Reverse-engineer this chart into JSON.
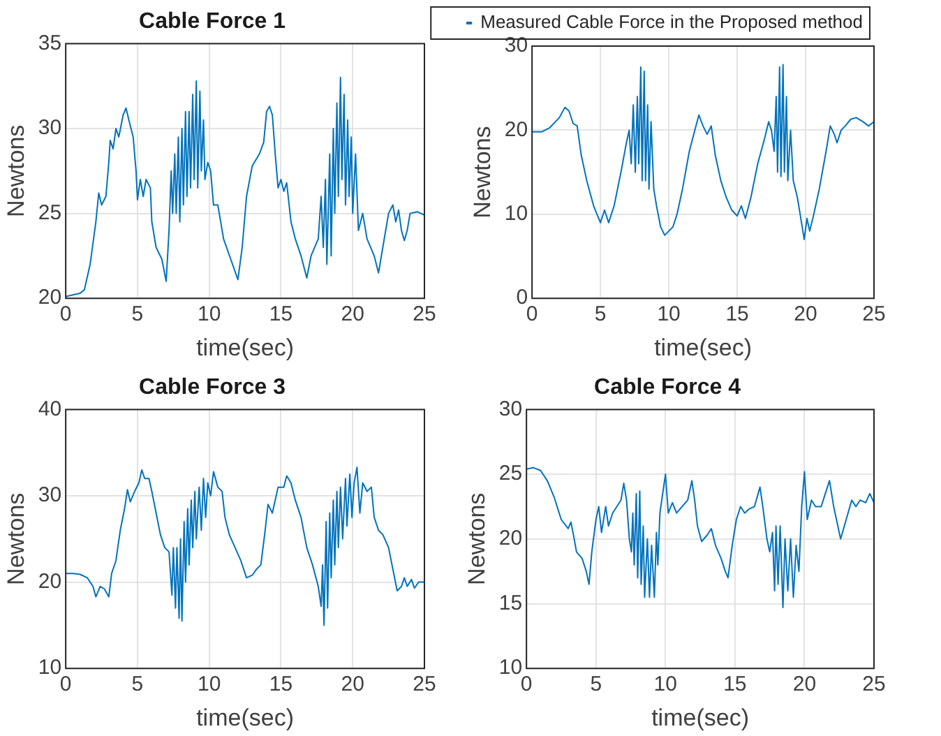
{
  "chart_data": [
    {
      "type": "line",
      "title": "Cable Force 1",
      "xlabel": "time(sec)",
      "ylabel": "Newtons",
      "xlim": [
        0,
        25
      ],
      "xticks": [
        0,
        5,
        10,
        15,
        20,
        25
      ],
      "ylim": [
        20,
        35
      ],
      "yticks": [
        20,
        25,
        30,
        35
      ],
      "grid": true,
      "legend": false,
      "marker": "none",
      "series": [
        {
          "color": "#0072bd",
          "x": [
            0,
            0.5,
            1,
            1.3,
            1.7,
            2.1,
            2.3,
            2.5,
            2.8,
            3.0,
            3.1,
            3.3,
            3.5,
            3.7,
            4.0,
            4.2,
            4.4,
            4.7,
            4.9,
            5.0,
            5.2,
            5.4,
            5.6,
            5.9,
            6.0,
            6.3,
            6.7,
            7.0,
            7.2,
            7.35,
            7.45,
            7.6,
            7.7,
            7.85,
            7.95,
            8.1,
            8.2,
            8.35,
            8.45,
            8.6,
            8.7,
            8.85,
            8.95,
            9.1,
            9.2,
            9.35,
            9.45,
            9.6,
            9.7,
            9.9,
            10.1,
            10.3,
            10.6,
            11.0,
            11.5,
            12.0,
            12.3,
            12.6,
            13.0,
            13.5,
            13.8,
            14.0,
            14.2,
            14.4,
            14.6,
            14.8,
            15.0,
            15.2,
            15.4,
            15.7,
            16.0,
            16.4,
            16.8,
            17.1,
            17.6,
            17.8,
            17.95,
            18.1,
            18.2,
            18.4,
            18.5,
            18.65,
            18.75,
            18.9,
            19.0,
            19.15,
            19.25,
            19.4,
            19.5,
            19.65,
            19.75,
            19.9,
            20.0,
            20.2,
            20.4,
            20.7,
            21.0,
            21.5,
            21.8,
            22.1,
            22.5,
            22.8,
            23.0,
            23.2,
            23.4,
            23.6,
            23.8,
            24.0,
            24.5,
            25
          ],
          "values": [
            20.1,
            20.2,
            20.3,
            20.5,
            22,
            24.5,
            26.2,
            25.5,
            26,
            28,
            29.3,
            28.8,
            30,
            29.5,
            30.8,
            31.2,
            30.5,
            29.5,
            27.5,
            25.8,
            27,
            26,
            27,
            26.5,
            24.5,
            23,
            22.3,
            21,
            24,
            27.5,
            25,
            28.5,
            25,
            29.5,
            24.5,
            30,
            25.5,
            31,
            26,
            31,
            26.5,
            32,
            27,
            32.8,
            26.5,
            32.2,
            27.5,
            30.5,
            27,
            28,
            27.5,
            25.5,
            25.5,
            23.5,
            22.3,
            21.1,
            23,
            26,
            27.8,
            28.5,
            29.2,
            31,
            31.3,
            30.8,
            28.5,
            26.5,
            27,
            26.3,
            26.8,
            24.5,
            23.5,
            22.5,
            21.2,
            22.5,
            23.5,
            26,
            23,
            27,
            22,
            28.5,
            22.5,
            30,
            25,
            31.5,
            26,
            33,
            27,
            32,
            25.5,
            30.5,
            26,
            29.5,
            25,
            28.5,
            24,
            25,
            23.5,
            22.5,
            21.5,
            23,
            25,
            25.5,
            24.5,
            25.2,
            24,
            23.4,
            24,
            25,
            25.1,
            24.9
          ]
        }
      ]
    },
    {
      "type": "line",
      "xlabel": "time(sec)",
      "ylabel": "Newtons",
      "xlim": [
        0,
        25
      ],
      "xticks": [
        0,
        5,
        10,
        15,
        20,
        25
      ],
      "ylim": [
        0,
        30
      ],
      "yticks": [
        0,
        10,
        20,
        30
      ],
      "grid": true,
      "legend": "top",
      "marker": "none",
      "series": [
        {
          "name": "Measured Cable Force in the Proposed method",
          "color": "#0072bd",
          "x": [
            0,
            0.7,
            1.3,
            2.0,
            2.4,
            2.7,
            3.0,
            3.3,
            3.6,
            4.0,
            4.5,
            5.0,
            5.3,
            5.6,
            6.0,
            6.5,
            6.9,
            7.1,
            7.25,
            7.4,
            7.55,
            7.7,
            7.8,
            7.95,
            8.05,
            8.2,
            8.3,
            8.45,
            8.55,
            8.7,
            8.9,
            9.1,
            9.4,
            9.7,
            10.0,
            10.3,
            10.6,
            11.0,
            11.5,
            11.9,
            12.2,
            12.5,
            12.8,
            13.1,
            13.4,
            13.8,
            14.2,
            14.6,
            15.0,
            15.3,
            15.6,
            16.0,
            16.5,
            17.0,
            17.3,
            17.5,
            17.7,
            17.85,
            17.95,
            18.1,
            18.2,
            18.35,
            18.45,
            18.6,
            18.7,
            18.9,
            19.1,
            19.4,
            19.7,
            19.9,
            20.1,
            20.3,
            20.6,
            21.0,
            21.5,
            21.8,
            22.1,
            22.3,
            22.6,
            22.9,
            23.3,
            23.7,
            24.2,
            24.6,
            25
          ],
          "values": [
            19.8,
            19.8,
            20.3,
            21.5,
            22.7,
            22.3,
            20.8,
            20.5,
            17,
            14,
            11,
            9,
            10.5,
            9,
            11,
            15,
            18.5,
            20,
            16,
            23,
            15,
            24,
            16,
            27.5,
            14,
            27,
            14,
            23,
            13,
            21,
            13,
            11,
            8.5,
            7.5,
            8,
            8.5,
            10,
            13,
            17.5,
            20,
            21.8,
            20.5,
            19.5,
            20.5,
            17,
            14,
            12,
            10.5,
            9.8,
            11,
            9.5,
            12,
            16,
            19,
            21,
            20,
            17.5,
            24,
            15,
            27.5,
            14.5,
            27.8,
            15,
            24,
            14,
            20,
            14,
            12,
            9,
            7,
            9.5,
            8,
            10,
            13,
            17.5,
            20.5,
            19.5,
            18.5,
            20,
            20.5,
            21.3,
            21.5,
            21,
            20.5,
            21
          ]
        }
      ]
    },
    {
      "type": "line",
      "title": "Cable Force 3",
      "xlabel": "time(sec)",
      "ylabel": "Newtons",
      "xlim": [
        0,
        25
      ],
      "xticks": [
        0,
        5,
        10,
        15,
        20,
        25
      ],
      "ylim": [
        10,
        40
      ],
      "yticks": [
        10,
        20,
        30,
        40
      ],
      "grid": true,
      "legend": false,
      "marker": "none",
      "series": [
        {
          "color": "#0072bd",
          "x": [
            0,
            0.5,
            1.0,
            1.5,
            1.9,
            2.1,
            2.4,
            2.7,
            3.0,
            3.2,
            3.5,
            3.8,
            4.1,
            4.3,
            4.5,
            4.8,
            5.1,
            5.3,
            5.5,
            5.8,
            6.0,
            6.3,
            6.6,
            6.9,
            7.2,
            7.4,
            7.5,
            7.65,
            7.75,
            7.9,
            8.0,
            8.1,
            8.25,
            8.35,
            8.5,
            8.6,
            8.75,
            8.85,
            9.0,
            9.1,
            9.3,
            9.45,
            9.6,
            9.75,
            9.9,
            10.1,
            10.3,
            10.6,
            10.9,
            11.1,
            11.4,
            11.8,
            12.2,
            12.6,
            13.0,
            13.3,
            13.6,
            13.9,
            14.1,
            14.4,
            14.6,
            14.8,
            15.2,
            15.4,
            15.7,
            16.0,
            16.4,
            16.8,
            17.2,
            17.6,
            17.8,
            17.9,
            18.0,
            18.15,
            18.25,
            18.4,
            18.5,
            18.65,
            18.75,
            18.9,
            19.0,
            19.15,
            19.3,
            19.5,
            19.6,
            19.8,
            19.95,
            20.1,
            20.3,
            20.5,
            20.7,
            21.0,
            21.3,
            21.5,
            21.8,
            22.1,
            22.5,
            22.8,
            23.1,
            23.4,
            23.6,
            23.8,
            24.1,
            24.3,
            24.6,
            25
          ],
          "values": [
            21,
            21,
            20.9,
            20.5,
            19.5,
            18.3,
            19.5,
            19.2,
            18.3,
            21,
            22.5,
            26,
            28.5,
            30.7,
            29.3,
            30.5,
            31.5,
            33,
            32,
            32,
            30.5,
            28,
            25.5,
            24,
            23.5,
            18.5,
            24,
            17,
            24,
            15.8,
            25,
            15.5,
            27,
            20,
            28.5,
            22,
            29.5,
            24,
            30.5,
            25,
            31,
            26,
            32,
            27.5,
            31.5,
            30,
            32.8,
            31,
            30.5,
            27.5,
            25.5,
            24,
            22.5,
            20.5,
            20.8,
            21.5,
            22,
            26,
            29,
            28,
            29.5,
            31,
            31,
            32.3,
            31.5,
            29.5,
            27.5,
            24,
            22,
            19.5,
            17.2,
            22,
            15,
            27,
            17,
            28,
            20.5,
            29.5,
            22,
            30.5,
            24,
            31,
            25,
            32,
            26.5,
            32.5,
            27.5,
            31.5,
            33.3,
            28,
            31.5,
            30.5,
            31,
            27.5,
            26,
            25.5,
            24,
            21.5,
            19,
            19.5,
            20.5,
            19.5,
            20.3,
            19.3,
            20,
            20
          ]
        }
      ]
    },
    {
      "type": "line",
      "title": "Cable Force 4",
      "xlabel": "time(sec)",
      "ylabel": "Newtons",
      "xlim": [
        0,
        25
      ],
      "xticks": [
        0,
        5,
        10,
        15,
        20,
        25
      ],
      "ylim": [
        10,
        30
      ],
      "yticks": [
        10,
        15,
        20,
        25,
        30
      ],
      "grid": true,
      "legend": false,
      "marker": "none",
      "series": [
        {
          "color": "#0072bd",
          "x": [
            0,
            0.5,
            1.0,
            1.5,
            2.0,
            2.5,
            3.0,
            3.2,
            3.4,
            3.6,
            4.0,
            4.3,
            4.5,
            4.7,
            5.0,
            5.2,
            5.4,
            5.7,
            5.9,
            6.2,
            6.5,
            6.8,
            7.0,
            7.2,
            7.4,
            7.55,
            7.65,
            7.75,
            7.9,
            8.0,
            8.15,
            8.25,
            8.4,
            8.5,
            8.7,
            8.85,
            9.0,
            9.2,
            9.35,
            9.45,
            9.6,
            9.8,
            10.0,
            10.2,
            10.5,
            10.8,
            11.2,
            11.6,
            11.9,
            12.1,
            12.3,
            12.6,
            13.0,
            13.3,
            13.6,
            14.0,
            14.3,
            14.5,
            14.8,
            15.1,
            15.4,
            15.7,
            16.0,
            16.4,
            16.8,
            17.0,
            17.3,
            17.5,
            17.7,
            17.85,
            17.95,
            18.1,
            18.25,
            18.45,
            18.6,
            18.8,
            19.0,
            19.2,
            19.4,
            19.6,
            19.8,
            20.0,
            20.2,
            20.5,
            20.8,
            21.2,
            21.5,
            21.8,
            22.1,
            22.4,
            22.6,
            23.0,
            23.4,
            23.7,
            24.0,
            24.4,
            24.7,
            25
          ],
          "values": [
            25.4,
            25.5,
            25.3,
            24.5,
            23.2,
            21.5,
            20.8,
            21.3,
            20.2,
            19,
            18.5,
            17.5,
            16.5,
            19,
            21.5,
            22.5,
            20.5,
            22.5,
            21,
            22,
            22.5,
            23,
            24.3,
            23,
            20,
            19,
            22,
            18,
            23.5,
            17,
            23.7,
            16.5,
            21,
            15.5,
            20,
            15.5,
            19.5,
            15.5,
            20.5,
            18,
            22,
            23.5,
            25,
            22,
            22.8,
            22,
            22.5,
            23,
            24.5,
            23,
            21,
            19.8,
            20.3,
            20.8,
            19.5,
            18.5,
            17.5,
            17,
            19.5,
            21.5,
            22.5,
            22,
            22.3,
            22.5,
            24,
            22.5,
            20,
            19,
            20.5,
            16,
            21,
            16.5,
            21,
            14.7,
            20,
            16,
            20,
            15.5,
            19.5,
            17.5,
            22.5,
            25.2,
            21.5,
            23,
            22.5,
            22.5,
            23.5,
            24.5,
            22.5,
            21,
            20,
            21.5,
            23,
            22.5,
            23,
            22.8,
            23.5,
            22.8
          ]
        }
      ]
    }
  ]
}
